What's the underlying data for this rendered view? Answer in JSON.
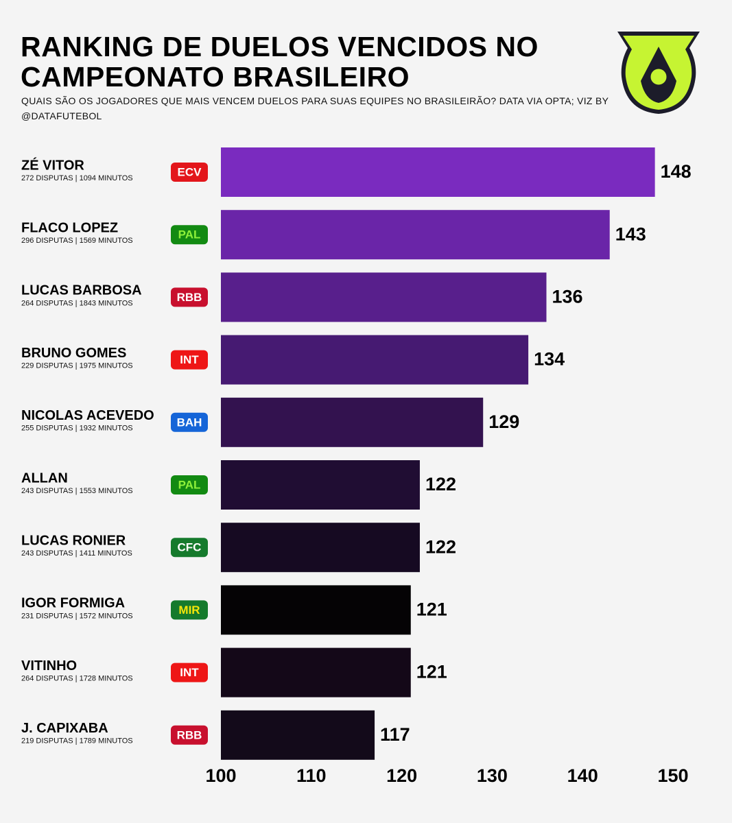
{
  "chart_data": {
    "type": "bar",
    "title": "RANKING DE DUELOS VENCIDOS NO CAMPEONATO BRASILEIRO",
    "subtitle": "QUAIS SÃO OS JOGADORES QUE MAIS VENCEM DUELOS PARA SUAS EQUIPES NO BRASILEIRÃO? DATA VIA OPTA; VIZ BY @DATAFUTEBOL",
    "categories": [
      "ZÉ VITOR",
      "FLACO LOPEZ",
      "LUCAS BARBOSA",
      "BRUNO GOMES",
      "NICOLAS ACEVEDO",
      "ALLAN",
      "LUCAS RONIER",
      "IGOR FORMIGA",
      "VITINHO",
      "J. CAPIXABA"
    ],
    "details": [
      "272 DISPUTAS | 1094 MINUTOS",
      "296 DISPUTAS | 1569 MINUTOS",
      "264 DISPUTAS | 1843 MINUTOS",
      "229 DISPUTAS | 1975 MINUTOS",
      "255 DISPUTAS | 1932 MINUTOS",
      "243 DISPUTAS | 1553 MINUTOS",
      "243 DISPUTAS | 1411 MINUTOS",
      "231 DISPUTAS | 1572 MINUTOS",
      "264 DISPUTAS | 1728 MINUTOS",
      "219 DISPUTAS | 1789 MINUTOS"
    ],
    "teams": [
      "ECV",
      "PAL",
      "RBB",
      "INT",
      "BAH",
      "PAL",
      "CFC",
      "MIR",
      "INT",
      "RBB"
    ],
    "team_colors": [
      "#e3161b",
      "#128a12",
      "#c8102e",
      "#ee1616",
      "#1565d8",
      "#128a12",
      "#157a2c",
      "#157a2c",
      "#ee1616",
      "#c8102e"
    ],
    "team_text_colors": [
      "#ffffff",
      "#8ef03a",
      "#ffffff",
      "#ffffff",
      "#ffffff",
      "#8ef03a",
      "#ffffff",
      "#f5e50a",
      "#ffffff",
      "#ffffff"
    ],
    "values": [
      148,
      143,
      136,
      134,
      129,
      122,
      122,
      121,
      121,
      117
    ],
    "colors": [
      "#7a2bbf",
      "#6a25a8",
      "#581f8c",
      "#461a72",
      "#33124f",
      "#200d33",
      "#160a22",
      "#050305",
      "#140818",
      "#130a1a"
    ],
    "xlim": [
      100,
      150
    ],
    "xticks": [
      100,
      110,
      120,
      130,
      140,
      150
    ]
  }
}
